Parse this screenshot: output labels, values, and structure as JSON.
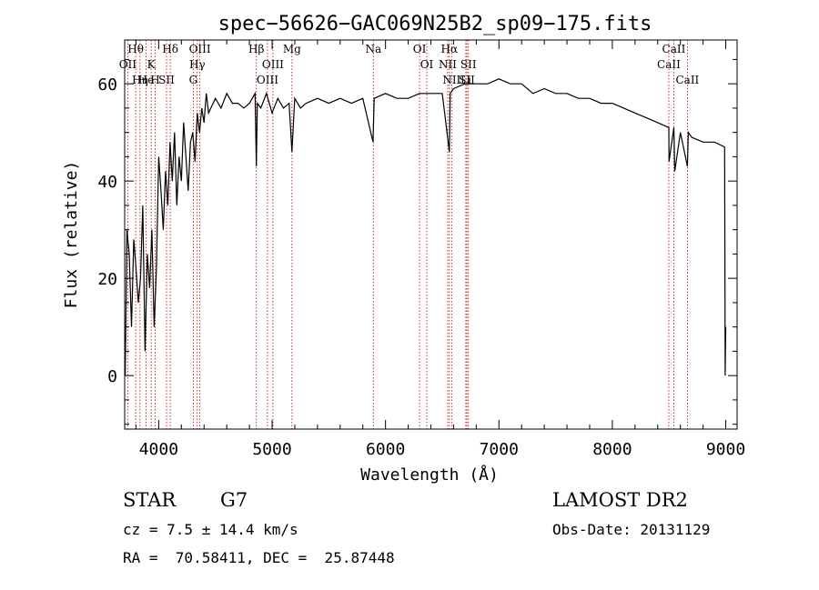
{
  "chart_data": {
    "type": "line",
    "title": "spec−56626−GAC069N25B2_sp09−175.fits",
    "xlabel": "Wavelength (Å)",
    "ylabel": "Flux (relative)",
    "xlim": [
      3700,
      9100
    ],
    "ylim": [
      -11,
      69
    ],
    "xticks": [
      4000,
      5000,
      6000,
      7000,
      8000,
      9000
    ],
    "yticks": [
      0,
      20,
      40,
      60
    ],
    "grid": false,
    "series": [
      {
        "x": [
          3705,
          3720,
          3740,
          3760,
          3780,
          3800,
          3820,
          3840,
          3860,
          3880,
          3900,
          3920,
          3940,
          3960,
          3980,
          4000,
          4020,
          4040,
          4060,
          4080,
          4100,
          4120,
          4140,
          4160,
          4180,
          4200,
          4220,
          4240,
          4260,
          4280,
          4300,
          4320,
          4340,
          4360,
          4380,
          4400,
          4420,
          4440,
          4460,
          4480,
          4500,
          4550,
          4600,
          4650,
          4700,
          4750,
          4800,
          4850,
          4861,
          4870,
          4900,
          4950,
          5000,
          5050,
          5100,
          5150,
          5175,
          5200,
          5250,
          5300,
          5400,
          5500,
          5600,
          5700,
          5800,
          5890,
          5900,
          6000,
          6100,
          6200,
          6300,
          6400,
          6500,
          6563,
          6570,
          6600,
          6700,
          6800,
          6900,
          7000,
          7100,
          7200,
          7300,
          7400,
          7500,
          7600,
          7700,
          7800,
          7900,
          8000,
          8100,
          8200,
          8300,
          8400,
          8498,
          8500,
          8542,
          8550,
          8600,
          8662,
          8670,
          8700,
          8800,
          8900,
          8990,
          8995,
          9000
        ],
        "y": [
          0,
          30,
          25,
          10,
          28,
          22,
          15,
          20,
          35,
          5,
          25,
          18,
          30,
          10,
          22,
          45,
          38,
          30,
          42,
          35,
          48,
          40,
          50,
          35,
          45,
          40,
          52,
          45,
          38,
          48,
          50,
          44,
          54,
          50,
          55,
          52,
          58,
          54,
          55,
          56,
          57,
          55,
          58,
          56,
          56,
          55,
          56,
          58,
          43,
          56,
          55,
          58,
          54,
          57,
          55,
          56,
          46,
          57,
          55,
          56,
          57,
          56,
          57,
          56,
          57,
          48,
          57,
          58,
          57,
          57,
          58,
          58,
          58,
          46,
          58,
          59,
          60,
          60,
          60,
          61,
          60,
          60,
          58,
          59,
          58,
          58,
          57,
          57,
          56,
          56,
          55,
          54,
          53,
          52,
          51,
          44,
          51,
          42,
          50,
          43,
          50,
          49,
          48,
          48,
          47,
          0,
          10
        ]
      }
    ],
    "line_markers": [
      {
        "label": "Hθ",
        "x": 3797
      },
      {
        "label": "OII",
        "x": 3727
      },
      {
        "label": "Hη",
        "x": 3835
      },
      {
        "label": "K",
        "x": 3934
      },
      {
        "label": "He",
        "x": 3889
      },
      {
        "label": "H",
        "x": 3969
      },
      {
        "label": "Hδ",
        "x": 4102
      },
      {
        "label": "SII",
        "x": 4069
      },
      {
        "label": "OIII",
        "x": 4363
      },
      {
        "label": "Hγ",
        "x": 4340
      },
      {
        "label": "G",
        "x": 4305
      },
      {
        "label": "Hβ",
        "x": 4861
      },
      {
        "label": "OIII",
        "x": 5007
      },
      {
        "label": "OIII",
        "x": 4959
      },
      {
        "label": "Mg",
        "x": 5175
      },
      {
        "label": "Na",
        "x": 5893
      },
      {
        "label": "OI",
        "x": 6300
      },
      {
        "label": "OI",
        "x": 6364
      },
      {
        "label": "Hα",
        "x": 6563
      },
      {
        "label": "NII",
        "x": 6548
      },
      {
        "label": "NII",
        "x": 6583
      },
      {
        "label": "SII",
        "x": 6717
      },
      {
        "label": "Li",
        "x": 6708
      },
      {
        "label": "SII",
        "x": 6731
      },
      {
        "label": "CaII",
        "x": 8542
      },
      {
        "label": "CaII",
        "x": 8498
      },
      {
        "label": "CaII",
        "x": 8662
      }
    ]
  },
  "info": {
    "object_class": "STAR",
    "subclass": "G7",
    "survey": "LAMOST DR2",
    "cz": "cz = 7.5 ± 14.4 km/s",
    "obs_date": "Obs-Date: 20131129",
    "coords": "RA =  70.58411, DEC =  25.87448"
  }
}
